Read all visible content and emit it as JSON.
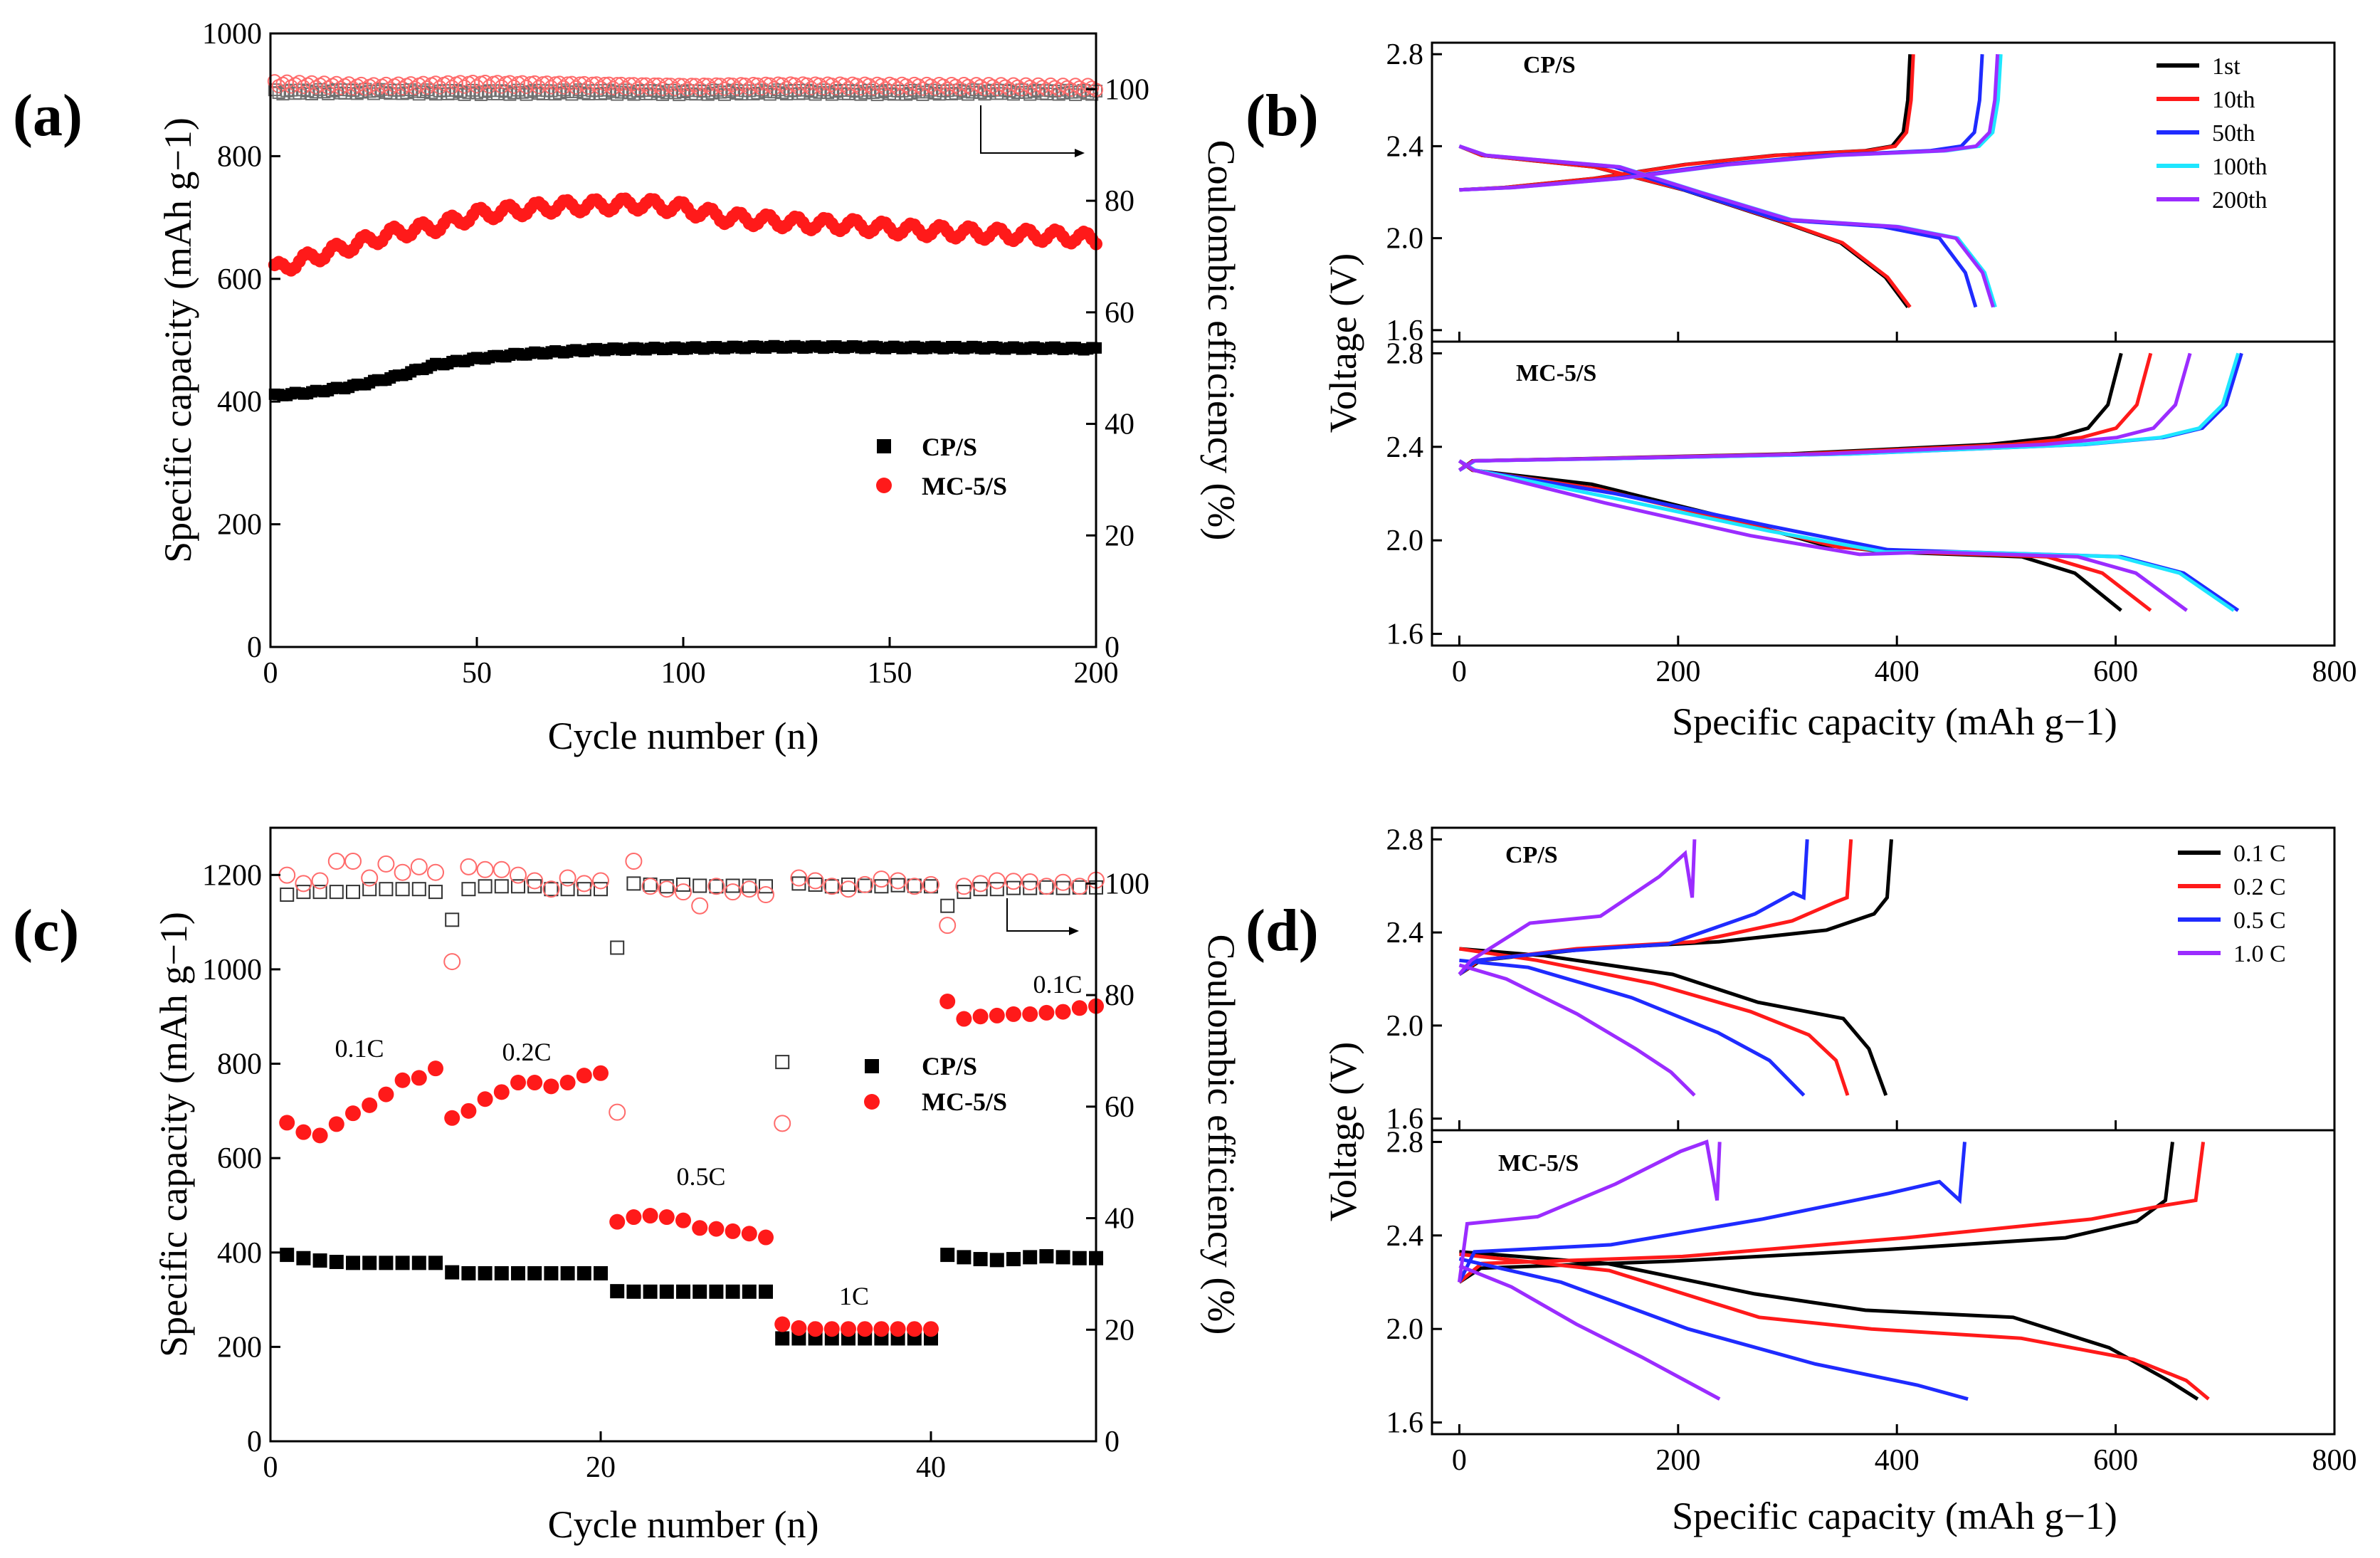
{
  "figure": {
    "colors": {
      "cps": "#000000",
      "mc5s": "#ff1a1a",
      "ce_cps": "#707070",
      "ce_mc5s": "#ff6b6b",
      "first": "#000000",
      "tenth": "#ff1a1a",
      "fiftieth": "#1f2bff",
      "hundredth": "#1ee6ff",
      "twohundredth": "#9b2cff",
      "c01": "#000000",
      "c02": "#ff1a1a",
      "c05": "#1f2bff",
      "c10": "#9b2cff"
    }
  },
  "chart_data": [
    {
      "panel": "(a)",
      "type": "scatter",
      "xlabel": "Cycle number (n)",
      "ylabel": "Specific capacity (mAh g−1)",
      "y2label": "Coulombic efficiency (%)",
      "xlim": [
        0,
        200
      ],
      "ylim": [
        0,
        1000
      ],
      "y2lim": [
        0,
        110
      ],
      "xticks": [
        "0",
        "50",
        "100",
        "150",
        "200"
      ],
      "yticks": [
        "0",
        "200",
        "400",
        "600",
        "800",
        "1000"
      ],
      "y2ticks": [
        "0",
        "20",
        "40",
        "60",
        "80",
        "100"
      ],
      "legend": [
        "CP/S",
        "MC-5/S"
      ],
      "series": [
        {
          "name": "CP/S",
          "axis": "left",
          "marker": "filled-square",
          "x": [
            1,
            10,
            20,
            30,
            40,
            50,
            60,
            70,
            80,
            90,
            100,
            110,
            120,
            130,
            140,
            150,
            160,
            170,
            180,
            190,
            200
          ],
          "values": [
            410,
            415,
            425,
            440,
            460,
            470,
            477,
            481,
            485,
            486,
            487,
            488,
            489,
            489,
            489,
            488,
            488,
            488,
            487,
            487,
            486
          ]
        },
        {
          "name": "MC-5/S",
          "axis": "left",
          "marker": "filled-circle",
          "x": [
            1,
            10,
            20,
            30,
            40,
            50,
            60,
            70,
            80,
            90,
            100,
            110,
            120,
            130,
            140,
            150,
            160,
            170,
            180,
            190,
            200
          ],
          "values": [
            615,
            635,
            655,
            675,
            685,
            705,
            712,
            718,
            720,
            722,
            715,
            700,
            695,
            690,
            688,
            682,
            678,
            675,
            672,
            670,
            665
          ]
        },
        {
          "name": "CP/S CE",
          "axis": "right",
          "marker": "open-square",
          "x": [
            1,
            25,
            50,
            75,
            100,
            125,
            150,
            175,
            200
          ],
          "values": [
            99.5,
            99.6,
            99.4,
            99.5,
            99.4,
            99.5,
            99.4,
            99.5,
            99.4
          ]
        },
        {
          "name": "MC-5/S CE",
          "axis": "right",
          "marker": "open-circle",
          "x": [
            1,
            25,
            50,
            75,
            100,
            125,
            150,
            175,
            200
          ],
          "values": [
            101,
            100.5,
            101,
            100.8,
            100.5,
            100.7,
            100.6,
            100.5,
            100.3
          ]
        }
      ]
    },
    {
      "panel": "(b)",
      "type": "line",
      "xlabel": "Specific capacity (mAh g−1)",
      "ylabel": "Voltage (V)",
      "xlim": [
        -25,
        800
      ],
      "xticks": [
        "0",
        "200",
        "400",
        "600",
        "800"
      ],
      "subplots": [
        {
          "label": "CP/S",
          "ylim": [
            1.55,
            2.85
          ],
          "yticks": [
            "1.6",
            "2.0",
            "2.4",
            "2.8"
          ],
          "legend": [
            "1st",
            "10th",
            "50th",
            "100th",
            "200th"
          ],
          "series": [
            {
              "name": "1st",
              "charge_end": 412,
              "discharge_end": 410
            },
            {
              "name": "10th",
              "charge_end": 415,
              "discharge_end": 412
            },
            {
              "name": "50th",
              "charge_end": 478,
              "discharge_end": 472
            },
            {
              "name": "100th",
              "charge_end": 495,
              "discharge_end": 490
            },
            {
              "name": "200th",
              "charge_end": 492,
              "discharge_end": 488
            }
          ]
        },
        {
          "label": "MC-5/S",
          "ylim": [
            1.55,
            2.85
          ],
          "yticks": [
            "1.6",
            "2.0",
            "2.4",
            "2.8"
          ],
          "series": [
            {
              "name": "1st",
              "charge_end": 605,
              "discharge_end": 605
            },
            {
              "name": "10th",
              "charge_end": 632,
              "discharge_end": 632
            },
            {
              "name": "50th",
              "charge_end": 715,
              "discharge_end": 712
            },
            {
              "name": "100th",
              "charge_end": 712,
              "discharge_end": 708
            },
            {
              "name": "200th",
              "charge_end": 668,
              "discharge_end": 665
            }
          ]
        }
      ]
    },
    {
      "panel": "(c)",
      "type": "scatter",
      "xlabel": "Cycle number (n)",
      "ylabel": "Specific capacity (mAh g−1)",
      "y2label": "Coulombic efficiency (%)",
      "xlim": [
        0,
        50
      ],
      "ylim": [
        0,
        1300
      ],
      "y2lim": [
        0,
        110
      ],
      "xticks": [
        "0",
        "20",
        "40"
      ],
      "yticks": [
        "0",
        "200",
        "400",
        "600",
        "800",
        "1000",
        "1200"
      ],
      "y2ticks": [
        "0",
        "20",
        "40",
        "60",
        "80",
        "100"
      ],
      "legend": [
        "CP/S",
        "MC-5/S"
      ],
      "rate_labels": [
        "0.1C",
        "0.2C",
        "0.5C",
        "1C",
        "0.1C"
      ],
      "series": [
        {
          "name": "CP/S",
          "axis": "left",
          "marker": "filled-square",
          "x": [
            1,
            2,
            3,
            4,
            5,
            6,
            7,
            8,
            9,
            10,
            11,
            12,
            13,
            14,
            15,
            16,
            17,
            18,
            19,
            20,
            21,
            22,
            23,
            24,
            25,
            26,
            27,
            28,
            29,
            30,
            31,
            32,
            33,
            34,
            35,
            36,
            37,
            38,
            39,
            40,
            41,
            42,
            43,
            44,
            45,
            46,
            47,
            48,
            49,
            50
          ],
          "values": [
            395,
            388,
            383,
            380,
            378,
            378,
            378,
            378,
            378,
            378,
            358,
            356,
            356,
            356,
            356,
            356,
            356,
            356,
            356,
            356,
            318,
            317,
            317,
            317,
            317,
            317,
            317,
            317,
            317,
            317,
            218,
            218,
            218,
            218,
            218,
            218,
            218,
            218,
            218,
            218,
            395,
            390,
            386,
            384,
            386,
            390,
            392,
            390,
            388,
            388
          ]
        },
        {
          "name": "MC-5/S",
          "axis": "left",
          "marker": "filled-circle",
          "x": [
            1,
            2,
            3,
            4,
            5,
            6,
            7,
            8,
            9,
            10,
            11,
            12,
            13,
            14,
            15,
            16,
            17,
            18,
            19,
            20,
            21,
            22,
            23,
            24,
            25,
            26,
            27,
            28,
            29,
            30,
            31,
            32,
            33,
            34,
            35,
            36,
            37,
            38,
            39,
            40,
            41,
            42,
            43,
            44,
            45,
            46,
            47,
            48,
            49,
            50
          ],
          "values": [
            675,
            655,
            648,
            672,
            695,
            712,
            735,
            765,
            770,
            790,
            685,
            700,
            725,
            740,
            760,
            760,
            752,
            760,
            775,
            780,
            465,
            475,
            478,
            475,
            468,
            452,
            450,
            445,
            440,
            432,
            248,
            240,
            238,
            238,
            238,
            238,
            238,
            238,
            238,
            238,
            932,
            895,
            900,
            902,
            905,
            905,
            908,
            910,
            918,
            922
          ]
        },
        {
          "name": "CP/S CE",
          "axis": "right",
          "marker": "open-square",
          "x": [
            1,
            2,
            3,
            4,
            5,
            6,
            7,
            8,
            9,
            10,
            11,
            12,
            13,
            14,
            15,
            16,
            17,
            18,
            19,
            20,
            21,
            22,
            23,
            24,
            25,
            26,
            27,
            28,
            29,
            30,
            31,
            32,
            33,
            34,
            35,
            36,
            37,
            38,
            39,
            40,
            41,
            42,
            43,
            44,
            45,
            46,
            47,
            48,
            49,
            50
          ],
          "values": [
            98,
            98.5,
            98.5,
            98.5,
            98.5,
            99,
            99,
            99,
            99,
            98.5,
            93.5,
            99,
            99.5,
            99.5,
            99.5,
            99.5,
            99,
            99,
            99,
            99,
            88.5,
            100,
            99.8,
            99.5,
            99.8,
            99.6,
            99.5,
            99.6,
            99.6,
            99.5,
            68,
            100,
            99.8,
            99.5,
            99.8,
            99.6,
            99.5,
            99.7,
            99.6,
            99.5,
            96,
            98.5,
            99,
            99,
            99.2,
            99.2,
            99.3,
            99.2,
            99.3,
            99.3
          ]
        },
        {
          "name": "MC-5/S CE",
          "axis": "right",
          "marker": "open-circle",
          "x": [
            1,
            2,
            3,
            4,
            5,
            6,
            7,
            8,
            9,
            10,
            11,
            12,
            13,
            14,
            15,
            16,
            17,
            18,
            19,
            20,
            21,
            22,
            23,
            24,
            25,
            26,
            27,
            28,
            29,
            30,
            31,
            32,
            33,
            34,
            35,
            36,
            37,
            38,
            39,
            40,
            41,
            42,
            43,
            44,
            45,
            46,
            47,
            48,
            49,
            50
          ],
          "values": [
            101.5,
            100,
            100.5,
            104,
            104,
            101,
            103.5,
            102,
            103,
            102,
            86,
            103,
            102.5,
            102.5,
            101.5,
            100.5,
            99,
            101,
            100,
            100.5,
            59,
            104,
            99.5,
            99,
            98.5,
            96,
            99.5,
            98.5,
            99,
            98,
            57,
            101,
            100.5,
            99.5,
            99,
            99.8,
            100.8,
            100.5,
            99.5,
            99.8,
            92.5,
            99.5,
            100,
            100.5,
            100.4,
            100.3,
            99.5,
            100.2,
            99.5,
            100.6
          ]
        }
      ]
    },
    {
      "panel": "(d)",
      "type": "line",
      "xlabel": "Specific capacity (mAh g−1)",
      "ylabel": "Voltage (V)",
      "xlim": [
        -25,
        800
      ],
      "xticks": [
        "0",
        "200",
        "400",
        "600",
        "800"
      ],
      "subplots": [
        {
          "label": "CP/S",
          "ylim": [
            1.55,
            2.85
          ],
          "yticks": [
            "1.6",
            "2.0",
            "2.4",
            "2.8"
          ],
          "legend": [
            "0.1 C",
            "0.2 C",
            "0.5 C",
            "1.0 C"
          ],
          "series": [
            {
              "name": "0.1 C",
              "charge_end": 395,
              "discharge_end": 390
            },
            {
              "name": "0.2 C",
              "charge_end": 358,
              "discharge_end": 355
            },
            {
              "name": "0.5 C",
              "charge_end": 318,
              "discharge_end": 315
            },
            {
              "name": "1.0 C",
              "charge_end": 215,
              "discharge_end": 215
            }
          ]
        },
        {
          "label": "MC-5/S",
          "ylim": [
            1.55,
            2.85
          ],
          "yticks": [
            "1.6",
            "2.0",
            "2.4",
            "2.8"
          ],
          "series": [
            {
              "name": "0.1 C",
              "charge_end": 652,
              "discharge_end": 675
            },
            {
              "name": "0.2 C",
              "charge_end": 680,
              "discharge_end": 685
            },
            {
              "name": "0.5 C",
              "charge_end": 462,
              "discharge_end": 465
            },
            {
              "name": "1.0 C",
              "charge_end": 238,
              "discharge_end": 238
            }
          ]
        }
      ]
    }
  ]
}
